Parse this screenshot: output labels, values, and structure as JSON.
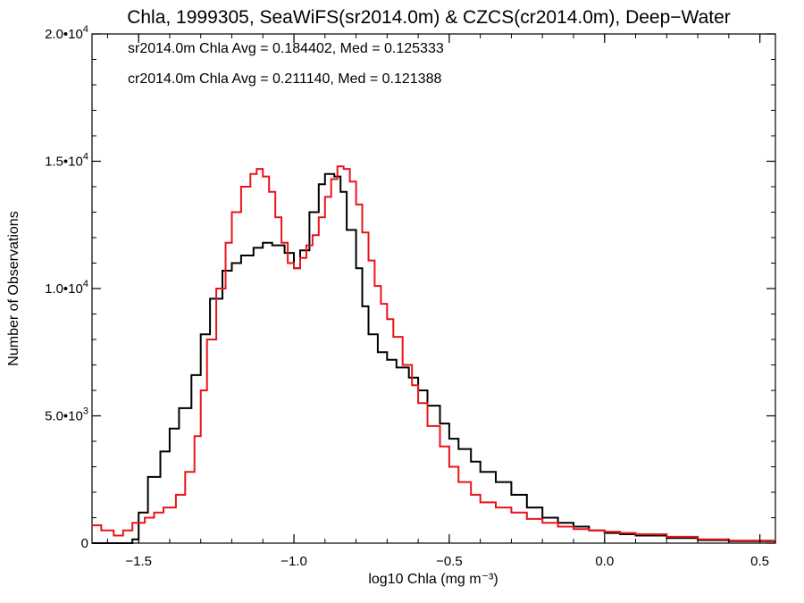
{
  "chart_data": {
    "type": "line",
    "title": "Chla, 1999305, SeaWiFS(sr2014.0m) & CZCS(cr2014.0m), Deep−Water",
    "xlabel": "log10 Chla (mg m⁻³)",
    "ylabel": "Number of Observations",
    "xlim": [
      -1.65,
      0.55
    ],
    "ylim": [
      0,
      20000
    ],
    "grid": false,
    "x_ticks": [
      {
        "value": -1.5,
        "label": "−1.5"
      },
      {
        "value": -1.0,
        "label": "−1.0"
      },
      {
        "value": -0.5,
        "label": "−0.5"
      },
      {
        "value": 0.0,
        "label": "0.0"
      },
      {
        "value": 0.5,
        "label": "0.5"
      }
    ],
    "y_ticks": [
      {
        "value": 0,
        "mantissa": "0",
        "exponent": ""
      },
      {
        "value": 5000,
        "mantissa": "5.0•10",
        "exponent": "3"
      },
      {
        "value": 10000,
        "mantissa": "1.0•10",
        "exponent": "4"
      },
      {
        "value": 15000,
        "mantissa": "1.5•10",
        "exponent": "4"
      },
      {
        "value": 20000,
        "mantissa": "2.0•10",
        "exponent": "4"
      }
    ],
    "stats": [
      {
        "text": "sr2014.0m Chla Avg = 0.184402, Med = 0.125333",
        "color": "#000000"
      },
      {
        "text": "cr2014.0m Chla Avg = 0.211140, Med = 0.121388",
        "color": "#e8141b"
      }
    ],
    "series": [
      {
        "color": "#000000",
        "x": [
          -1.65,
          -1.55,
          -1.52,
          -1.5,
          -1.47,
          -1.43,
          -1.4,
          -1.37,
          -1.33,
          -1.3,
          -1.27,
          -1.23,
          -1.2,
          -1.17,
          -1.13,
          -1.1,
          -1.07,
          -1.03,
          -1.0,
          -0.98,
          -0.95,
          -0.92,
          -0.9,
          -0.87,
          -0.85,
          -0.83,
          -0.8,
          -0.78,
          -0.76,
          -0.73,
          -0.7,
          -0.67,
          -0.63,
          -0.6,
          -0.57,
          -0.53,
          -0.5,
          -0.47,
          -0.43,
          -0.4,
          -0.35,
          -0.3,
          -0.25,
          -0.2,
          -0.15,
          -0.1,
          -0.05,
          0.0,
          0.05,
          0.1,
          0.2,
          0.3,
          0.4,
          0.55
        ],
        "y": [
          0,
          0,
          150,
          1200,
          2600,
          3600,
          4500,
          5300,
          6600,
          8200,
          9600,
          10700,
          11000,
          11300,
          11600,
          11800,
          11700,
          11400,
          10800,
          11500,
          13000,
          14100,
          14500,
          14400,
          13800,
          12300,
          10800,
          9300,
          8200,
          7500,
          7200,
          6900,
          6500,
          6000,
          5400,
          4700,
          4100,
          3700,
          3200,
          2800,
          2400,
          1900,
          1400,
          1000,
          800,
          650,
          500,
          400,
          350,
          300,
          200,
          120,
          80,
          30
        ]
      },
      {
        "color": "#e8141b",
        "x": [
          -1.65,
          -1.62,
          -1.58,
          -1.55,
          -1.52,
          -1.48,
          -1.45,
          -1.42,
          -1.38,
          -1.35,
          -1.32,
          -1.3,
          -1.28,
          -1.25,
          -1.22,
          -1.2,
          -1.17,
          -1.14,
          -1.12,
          -1.1,
          -1.08,
          -1.06,
          -1.04,
          -1.02,
          -1.0,
          -0.98,
          -0.96,
          -0.94,
          -0.92,
          -0.9,
          -0.88,
          -0.86,
          -0.84,
          -0.82,
          -0.8,
          -0.78,
          -0.76,
          -0.74,
          -0.72,
          -0.7,
          -0.68,
          -0.65,
          -0.62,
          -0.6,
          -0.57,
          -0.53,
          -0.5,
          -0.47,
          -0.43,
          -0.4,
          -0.35,
          -0.3,
          -0.25,
          -0.2,
          -0.15,
          -0.1,
          -0.05,
          0.0,
          0.05,
          0.1,
          0.2,
          0.3,
          0.4,
          0.55
        ],
        "y": [
          700,
          500,
          300,
          500,
          800,
          1000,
          1200,
          1400,
          1900,
          2800,
          4200,
          6000,
          8000,
          10000,
          11800,
          13000,
          14000,
          14500,
          14700,
          14400,
          13800,
          12800,
          11800,
          11000,
          10800,
          11200,
          11700,
          12100,
          12800,
          13600,
          14300,
          14800,
          14700,
          14200,
          13300,
          12200,
          11100,
          10100,
          9400,
          8800,
          8100,
          7000,
          6200,
          5500,
          4600,
          3800,
          3000,
          2400,
          1900,
          1600,
          1400,
          1200,
          950,
          800,
          650,
          550,
          500,
          450,
          400,
          350,
          250,
          150,
          100,
          60
        ]
      }
    ]
  }
}
